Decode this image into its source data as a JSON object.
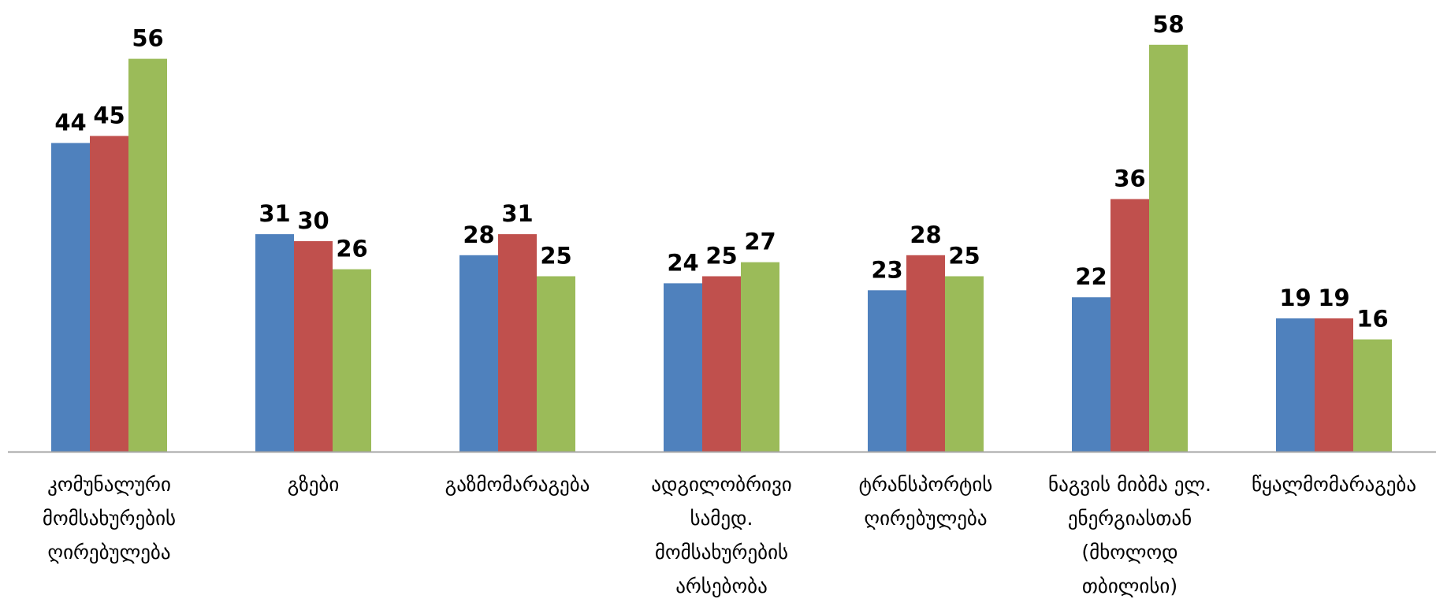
{
  "chart_data": {
    "type": "bar",
    "title": "",
    "xlabel": "",
    "ylabel": "",
    "ylim": [
      0,
      60
    ],
    "grid": false,
    "legend": "none",
    "categories": [
      [
        "კომუნალური",
        "მომსახურების",
        "ღირებულება"
      ],
      [
        "გზები"
      ],
      [
        "გაზმომარაგება"
      ],
      [
        "ადგილობრივი",
        "სამედ.",
        "მომსახურების",
        "არსებობა"
      ],
      [
        "ტრანსპორტის",
        "ღირებულება"
      ],
      [
        "ნაგვის მიბმა ელ.",
        "ენერგიასთან",
        "(მხოლოდ",
        "თბილისი)"
      ],
      [
        "წყალმომარაგება"
      ]
    ],
    "series": [
      {
        "color": "#4F81BD",
        "values": [
          44,
          31,
          28,
          24,
          23,
          22,
          19
        ]
      },
      {
        "color": "#C0504D",
        "values": [
          45,
          30,
          31,
          25,
          28,
          36,
          19
        ]
      },
      {
        "color": "#9BBB59",
        "values": [
          56,
          26,
          25,
          27,
          25,
          58,
          16
        ]
      }
    ],
    "axis_color": "#A6A6A6"
  }
}
